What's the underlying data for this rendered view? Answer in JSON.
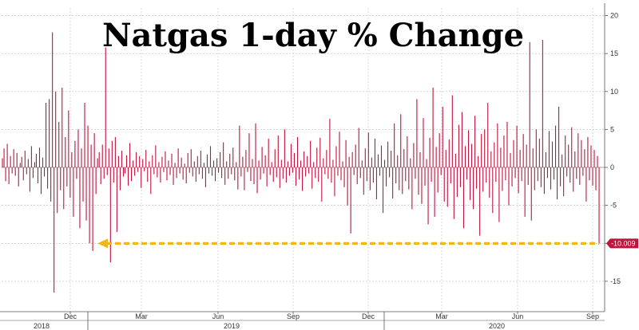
{
  "chart_data": {
    "type": "bar",
    "title": "Natgas 1-day % Change",
    "xlabel": "",
    "ylabel": "",
    "ylim": [
      -19,
      21
    ],
    "yticks": [
      20,
      15,
      10,
      5,
      0,
      -5,
      -10,
      -15
    ],
    "month_ticks": [
      "Dec",
      "Mar",
      "Jun",
      "Sep",
      "Dec",
      "Mar",
      "Jun",
      "Sep"
    ],
    "year_ticks": [
      "2018",
      "2019",
      "2020"
    ],
    "last_value_label": "-10.009",
    "grid": true,
    "series_color": "#c0143c",
    "arrow_color": "#f2b51c",
    "label_bg_color": "#c0143c",
    "values": [
      1.2,
      2.5,
      -1.8,
      3.1,
      -2.2,
      1.5,
      -0.8,
      2.4,
      -1.1,
      1.9,
      -2.5,
      0.6,
      1.4,
      -1.7,
      2.2,
      -0.9,
      1.1,
      -3.2,
      2.8,
      -1.4,
      0.7,
      1.8,
      -2.1,
      2.6,
      -3.5,
      1.3,
      -1.2,
      8.5,
      -2.8,
      9.0,
      -4.5,
      17.8,
      -16.5,
      10.0,
      -6.0,
      6.0,
      -3.0,
      10.5,
      -5.5,
      4.0,
      -2.5,
      7.5,
      -4.0,
      2.0,
      -6.5,
      3.5,
      -1.5,
      5.0,
      -8.0,
      2.5,
      -4.5,
      8.5,
      -7.0,
      5.5,
      -10.0,
      3.0,
      -11.0,
      4.5,
      -3.5,
      1.2,
      2.0,
      -2.2,
      3.0,
      -1.5,
      15.8,
      -1.0,
      2.5,
      -12.5,
      3.5,
      -2.0,
      4.0,
      -8.5,
      1.5,
      -3.0,
      2.2,
      -1.2,
      -0.8,
      1.6,
      -2.4,
      3.2,
      -1.8,
      0.9,
      -1.1,
      2.0,
      -0.6,
      1.5,
      -2.7,
      1.1,
      -0.5,
      2.3,
      -1.9,
      0.8,
      -3.5,
      1.6,
      -0.9,
      2.9,
      -1.3,
      0.7,
      -2.0,
      1.4,
      -0.6,
      2.1,
      -1.7,
      0.9,
      -1.0,
      1.8,
      -2.3,
      0.6,
      -1.4,
      2.5,
      -0.8,
      1.3,
      -1.6,
      0.5,
      -2.1,
      1.9,
      -0.7,
      2.4,
      -1.2,
      0.8,
      -1.9,
      1.5,
      -0.9,
      2.2,
      -1.5,
      0.6,
      -2.6,
      1.7,
      -0.8,
      2.8,
      -1.1,
      0.9,
      -1.8,
      1.2,
      -0.7,
      2.0,
      -1.4,
      3.3,
      -2.3,
      0.8,
      -1.5,
      1.8,
      -0.9,
      2.6,
      -1.7,
      0.7,
      -2.9,
      5.5,
      -1.2,
      1.4,
      -3.0,
      2.3,
      -0.6,
      4.5,
      -1.8,
      1.1,
      -2.2,
      5.8,
      -3.4,
      0.9,
      -1.6,
      2.7,
      -0.8,
      1.6,
      -2.5,
      3.8,
      -1.0,
      0.7,
      -1.9,
      2.4,
      -1.3,
      4.2,
      -2.7,
      1.0,
      -1.5,
      5.0,
      -2.0,
      0.8,
      -1.1,
      3.1,
      -0.7,
      1.9,
      -2.4,
      4.0,
      -1.6,
      0.9,
      -3.1,
      2.1,
      -1.2,
      1.5,
      -0.8,
      3.5,
      -2.8,
      0.7,
      -1.4,
      2.6,
      -1.9,
      3.9,
      -4.5,
      1.2,
      -0.9,
      2.3,
      -1.5,
      6.4,
      -2.0,
      1.0,
      -3.8,
      2.8,
      -1.1,
      4.7,
      -1.7,
      0.8,
      -2.6,
      3.6,
      -5.0,
      1.4,
      -8.7,
      2.0,
      -1.0,
      3.0,
      -2.2,
      5.2,
      -1.4,
      0.9,
      -3.6,
      2.5,
      -1.8,
      4.6,
      -3.0,
      1.3,
      -2.0,
      3.8,
      -4.2,
      1.7,
      -1.1,
      2.9,
      -6.0,
      1.0,
      -2.5,
      3.4,
      -1.3,
      2.2,
      -4.1,
      5.8,
      -2.1,
      1.6,
      -3.0,
      7.0,
      -3.5,
      2.4,
      -1.8,
      4.1,
      -2.9,
      1.2,
      -5.5,
      3.2,
      -1.5,
      9.0,
      -3.6,
      2.0,
      -4.8,
      6.5,
      -2.4,
      1.1,
      -7.5,
      3.9,
      -1.9,
      10.5,
      -6.5,
      2.7,
      -3.3,
      4.5,
      -1.0,
      8.0,
      -4.5,
      2.3,
      -5.2,
      3.7,
      -2.1,
      9.5,
      -6.8,
      1.8,
      -3.9,
      5.6,
      -2.6,
      7.3,
      -8.0,
      2.8,
      -1.6,
      4.9,
      -4.3,
      3.1,
      -5.5,
      6.8,
      -2.8,
      1.5,
      -9.0,
      4.4,
      -3.2,
      5.0,
      -2.0,
      8.5,
      -4.0,
      2.1,
      -6.0,
      3.3,
      -1.9,
      5.8,
      -7.2,
      2.6,
      -3.1,
      4.2,
      -1.7,
      6.0,
      -5.0,
      1.9,
      -2.5,
      3.6,
      -1.4,
      5.5,
      -3.4,
      2.3,
      -1.8,
      4.4,
      -6.5,
      3.0,
      -2.3,
      16.5,
      -7.0,
      2.5,
      -3.0,
      5.0,
      -1.8,
      3.8,
      -2.6,
      16.8,
      -3.5,
      2.0,
      -1.4,
      4.8,
      -2.9,
      3.4,
      -1.6,
      5.5,
      -4.2,
      8.0,
      -2.5,
      1.7,
      -3.8,
      4.2,
      -1.2,
      3.0,
      -2.0,
      5.3,
      -3.2,
      2.1,
      -1.5,
      4.5,
      -2.3,
      3.6,
      -1.1,
      2.4,
      -4.5,
      4.0,
      -1.7,
      2.9,
      -2.4,
      2.3,
      -3.0,
      1.5,
      -10.009
    ]
  }
}
